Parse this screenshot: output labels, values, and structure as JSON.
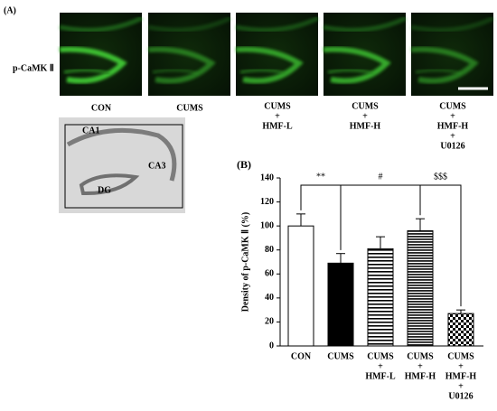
{
  "panel_a": {
    "label": "(A)",
    "row_label": "p-CaMK Ⅱ",
    "groups": [
      [
        "CON"
      ],
      [
        "CUMS"
      ],
      [
        "CUMS",
        "+",
        "HMF-L"
      ],
      [
        "CUMS",
        "+",
        "HMF-H"
      ],
      [
        "CUMS",
        "+",
        "HMF-H",
        "+",
        "U0126"
      ]
    ],
    "regions": [
      "CA1",
      "CA3",
      "DG"
    ]
  },
  "chart_data": {
    "type": "bar",
    "panel_label": "(B)",
    "ylabel": "Density of p-CaMK Ⅱ (%)",
    "categories": [
      [
        "CON"
      ],
      [
        "CUMS"
      ],
      [
        "CUMS",
        "+",
        "HMF-L"
      ],
      [
        "CUMS",
        "+",
        "HMF-H"
      ],
      [
        "CUMS",
        "+",
        "HMF-H",
        "+",
        "U0126"
      ]
    ],
    "values": [
      100,
      69,
      81,
      96,
      27
    ],
    "errors": [
      10,
      8,
      10,
      10,
      3
    ],
    "fills": [
      "white",
      "black",
      "hlines",
      "dense-hlines",
      "checker"
    ],
    "ylim": [
      0,
      140
    ],
    "yticks": [
      0,
      20,
      40,
      60,
      80,
      100,
      120,
      140
    ],
    "annotations": [
      "**",
      "#",
      "$$$"
    ]
  }
}
